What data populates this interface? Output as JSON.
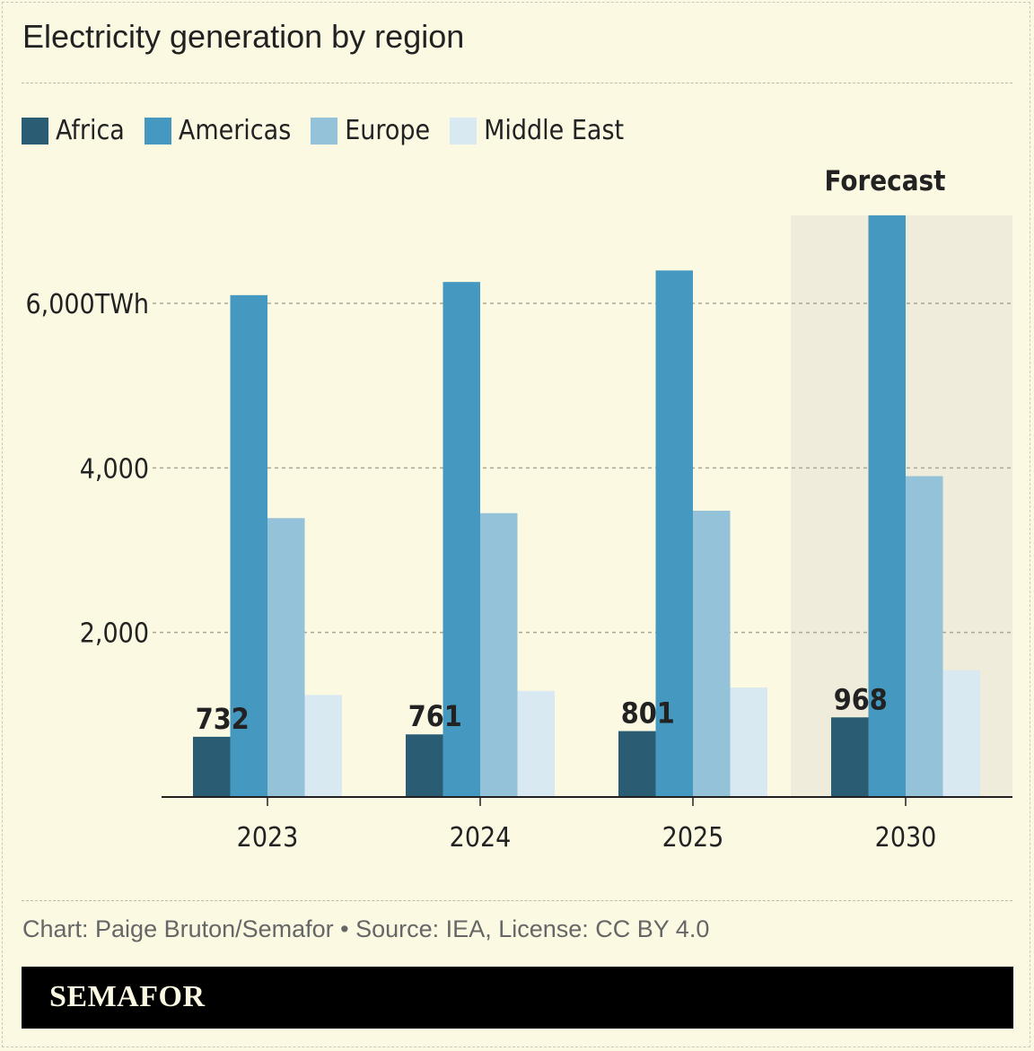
{
  "title": "Electricity generation by region",
  "credit": "Chart: Paige Bruton/Semafor • Source: IEA, License: CC BY 4.0",
  "brand": "SEMAFOR",
  "colors": {
    "background": "#fcf9e3",
    "forecast_band": "#f0ecdb"
  },
  "chart_data": {
    "type": "bar",
    "categories": [
      "2023",
      "2024",
      "2025",
      "2030"
    ],
    "series": [
      {
        "name": "Africa",
        "color": "#2a5d74",
        "values": [
          732,
          761,
          801,
          968
        ]
      },
      {
        "name": "Americas",
        "color": "#4599c0",
        "values": [
          6100,
          6260,
          6400,
          7070
        ]
      },
      {
        "name": "Europe",
        "color": "#93c2d9",
        "values": [
          3390,
          3450,
          3480,
          3900
        ]
      },
      {
        "name": "Middle East",
        "color": "#d9e9f1",
        "values": [
          1240,
          1290,
          1330,
          1540
        ]
      }
    ],
    "data_labels": {
      "series": "Africa",
      "labels": [
        "732",
        "761",
        "801",
        "968"
      ]
    },
    "yticks": [
      {
        "value": 2000,
        "label": "2,000"
      },
      {
        "value": 4000,
        "label": "4,000"
      },
      {
        "value": 6000,
        "label": "6,000TWh"
      }
    ],
    "ylim": [
      0,
      7070
    ],
    "grid": true,
    "legend": "top-left",
    "annotation": {
      "label": "Forecast",
      "category": "2030"
    }
  }
}
